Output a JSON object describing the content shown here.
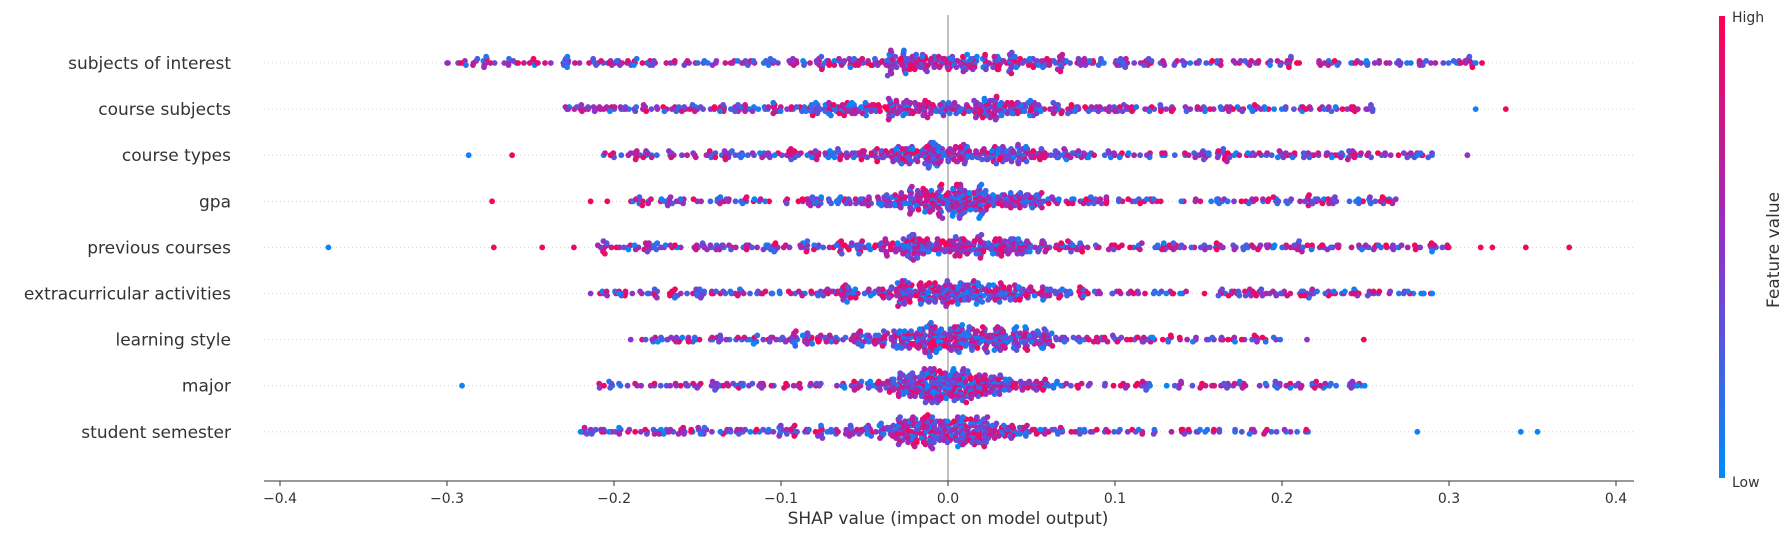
{
  "chart_data": {
    "type": "scatter",
    "subtype": "beeswarm",
    "title": "",
    "xlabel": "SHAP value (impact on model output)",
    "xlim": [
      -0.41,
      0.41
    ],
    "x_ticks": [
      -0.4,
      -0.3,
      -0.2,
      -0.1,
      0.0,
      0.1,
      0.2,
      0.3,
      0.4
    ],
    "x_tick_labels": [
      "−0.4",
      "−0.3",
      "−0.2",
      "−0.1",
      "0.0",
      "0.1",
      "0.2",
      "0.3",
      "0.4"
    ],
    "grid": false,
    "zero_line": true,
    "features": [
      {
        "name": "subjects of interest",
        "spread": 0.042,
        "range": [
          -0.3,
          0.32
        ],
        "core": 0.34,
        "points": [
          {
            "x": -0.292,
            "v": 0.95
          },
          {
            "x": -0.246,
            "v": 0.95
          },
          {
            "x": -0.203,
            "v": 0.9
          },
          {
            "x": -0.183,
            "v": 0.9
          },
          {
            "x": 0.307,
            "v": 0.85
          },
          {
            "x": 0.316,
            "v": 0.05
          },
          {
            "x": 0.27,
            "v": 0.5
          },
          {
            "x": 0.244,
            "v": 0.9
          }
        ]
      },
      {
        "name": "course subjects",
        "spread": 0.045,
        "range": [
          -0.23,
          0.26
        ],
        "core": 0.36,
        "points": [
          {
            "x": -0.228,
            "v": 0.5
          },
          {
            "x": -0.193,
            "v": 0.5
          },
          {
            "x": 0.316,
            "v": 0.05
          },
          {
            "x": 0.334,
            "v": 0.95
          }
        ]
      },
      {
        "name": "course types",
        "spread": 0.04,
        "range": [
          -0.21,
          0.29
        ],
        "core": 0.42,
        "points": [
          {
            "x": -0.287,
            "v": 0.05
          },
          {
            "x": -0.261,
            "v": 0.95
          },
          {
            "x": 0.281,
            "v": 0.05
          },
          {
            "x": 0.311,
            "v": 0.5
          }
        ]
      },
      {
        "name": "gpa",
        "spread": 0.036,
        "range": [
          -0.19,
          0.27
        ],
        "core": 0.5,
        "points": [
          {
            "x": -0.273,
            "v": 0.95
          },
          {
            "x": -0.214,
            "v": 0.95
          },
          {
            "x": -0.204,
            "v": 0.95
          },
          {
            "x": 0.264,
            "v": 0.95
          }
        ]
      },
      {
        "name": "previous courses",
        "spread": 0.038,
        "range": [
          -0.21,
          0.3
        ],
        "core": 0.4,
        "points": [
          {
            "x": -0.371,
            "v": 0.05
          },
          {
            "x": -0.272,
            "v": 0.95
          },
          {
            "x": -0.243,
            "v": 0.95
          },
          {
            "x": -0.224,
            "v": 0.9
          },
          {
            "x": 0.319,
            "v": 0.95
          },
          {
            "x": 0.326,
            "v": 0.95
          },
          {
            "x": 0.346,
            "v": 0.95
          },
          {
            "x": 0.372,
            "v": 0.95
          }
        ]
      },
      {
        "name": "extracurricular activities",
        "spread": 0.036,
        "range": [
          -0.21,
          0.29
        ],
        "core": 0.46,
        "points": [
          {
            "x": -0.214,
            "v": 0.5
          },
          {
            "x": -0.197,
            "v": 0.05
          },
          {
            "x": 0.29,
            "v": 0.05
          },
          {
            "x": 0.285,
            "v": 0.05
          },
          {
            "x": 0.243,
            "v": 0.9
          }
        ]
      },
      {
        "name": "learning style",
        "spread": 0.03,
        "range": [
          -0.19,
          0.2
        ],
        "core": 0.5,
        "points": [
          {
            "x": -0.19,
            "v": 0.5
          },
          {
            "x": 0.215,
            "v": 0.5
          },
          {
            "x": 0.249,
            "v": 0.95
          }
        ]
      },
      {
        "name": "major",
        "spread": 0.026,
        "range": [
          -0.21,
          0.25
        ],
        "core": 0.55,
        "points": [
          {
            "x": -0.291,
            "v": 0.05
          },
          {
            "x": -0.206,
            "v": 0.95
          },
          {
            "x": 0.245,
            "v": 0.05
          }
        ]
      },
      {
        "name": "student semester",
        "spread": 0.025,
        "range": [
          -0.22,
          0.22
        ],
        "core": 0.5,
        "points": [
          {
            "x": -0.22,
            "v": 0.05
          },
          {
            "x": -0.203,
            "v": 0.05
          },
          {
            "x": 0.281,
            "v": 0.05
          },
          {
            "x": 0.343,
            "v": 0.05
          },
          {
            "x": 0.353,
            "v": 0.05
          }
        ]
      }
    ],
    "colorbar": {
      "label": "Feature value",
      "high_label": "High",
      "low_label": "Low",
      "low_color": "#008bfb",
      "mid_color": "#8d33c9",
      "high_color": "#ff0052"
    }
  }
}
